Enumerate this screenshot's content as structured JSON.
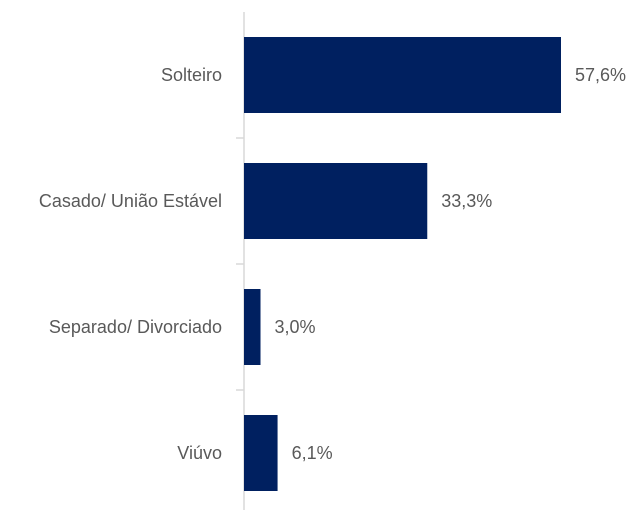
{
  "chart_data": {
    "type": "bar",
    "orientation": "horizontal",
    "categories": [
      "Solteiro",
      "Casado/ União Estável",
      "Separado/ Divorciado",
      "Viúvo"
    ],
    "values": [
      57.6,
      33.3,
      3.0,
      6.1
    ],
    "value_labels": [
      "57,6%",
      "33,3%",
      "3,0%",
      "6,1%"
    ],
    "color": "#002060"
  }
}
